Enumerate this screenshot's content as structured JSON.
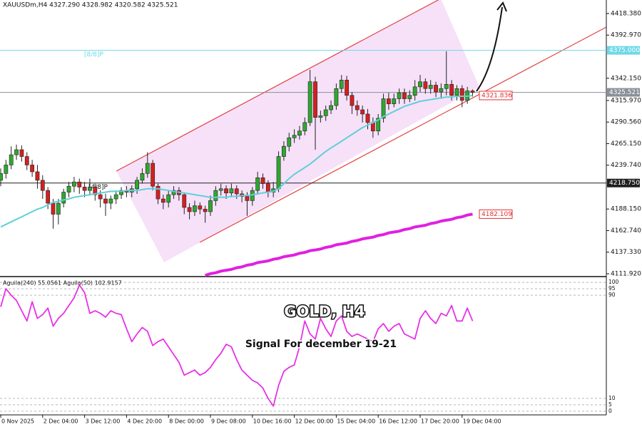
{
  "chart_data": [
    {
      "type": "candlestick",
      "title": "XAUUSDm,H4  4327.290 4328.982 4320.582 4325.521",
      "categories": [
        "0 Nov 2025",
        null,
        null,
        null,
        null,
        null,
        null,
        null,
        "2 Dec 04:00",
        null,
        null,
        null,
        null,
        null,
        null,
        null,
        "3 Dec 12:00",
        null,
        null,
        null,
        null,
        null,
        null,
        null,
        "4 Dec 20:00",
        null,
        null,
        null,
        null,
        null,
        null,
        null,
        "8 Dec 00:00",
        null,
        null,
        null,
        null,
        null,
        null,
        null,
        "9 Dec 08:00",
        null,
        null,
        null,
        null,
        null,
        null,
        null,
        "10 Dec 16:00",
        null,
        null,
        null,
        null,
        null,
        null,
        null,
        "12 Dec 00:00",
        null,
        null,
        null,
        null,
        null,
        null,
        null,
        "15 Dec 04:00",
        null,
        null,
        null,
        null,
        null,
        null,
        null,
        "16 Dec 12:00",
        null,
        null,
        null,
        null,
        null,
        null,
        null,
        "17 Dec 20:00",
        null,
        null,
        null,
        null,
        null,
        null,
        null,
        "19 Dec 04:00",
        null,
        null
      ],
      "open": [
        4222,
        4230,
        4240,
        4252,
        4258,
        4250,
        4240,
        4232,
        4222,
        4210,
        4195,
        4182,
        4195,
        4208,
        4215,
        4220,
        4214,
        4210,
        4214,
        4205,
        4200,
        4195,
        4200,
        4205,
        4210,
        4208,
        4212,
        4222,
        4230,
        4242,
        4215,
        4200,
        4196,
        4205,
        4210,
        4205,
        4190,
        4185,
        4192,
        4188,
        4185,
        4198,
        4210,
        4212,
        4207,
        4212,
        4206,
        4203,
        4198,
        4210,
        4225,
        4218,
        4208,
        4212,
        4250,
        4262,
        4272,
        4275,
        4280,
        4290,
        4338,
        4296,
        4298,
        4305,
        4310,
        4330,
        4340,
        4322,
        4310,
        4305,
        4300,
        4290,
        4280,
        4295,
        4318,
        4312,
        4318,
        4325,
        4318,
        4322,
        4332,
        4338,
        4330,
        4334,
        4326,
        4330,
        4335,
        4322,
        4330,
        4316,
        4327.29
      ],
      "high": [
        4236,
        4246,
        4262,
        4264,
        4263,
        4255,
        4246,
        4240,
        4228,
        4214,
        4200,
        4200,
        4212,
        4220,
        4226,
        4224,
        4220,
        4224,
        4218,
        4210,
        4206,
        4204,
        4210,
        4214,
        4215,
        4216,
        4226,
        4236,
        4255,
        4246,
        4218,
        4205,
        4210,
        4215,
        4214,
        4208,
        4195,
        4198,
        4196,
        4192,
        4204,
        4215,
        4218,
        4216,
        4218,
        4216,
        4210,
        4208,
        4214,
        4232,
        4230,
        4222,
        4220,
        4256,
        4268,
        4278,
        4282,
        4286,
        4296,
        4352,
        4344,
        4304,
        4310,
        4316,
        4336,
        4346,
        4345,
        4326,
        4316,
        4310,
        4306,
        4296,
        4300,
        4324,
        4325,
        4324,
        4330,
        4330,
        4328,
        4340,
        4346,
        4342,
        4340,
        4338,
        4336,
        4374,
        4340,
        4334,
        4334,
        4332,
        4328.982
      ],
      "low": [
        4215,
        4224,
        4235,
        4246,
        4244,
        4234,
        4226,
        4212,
        4200,
        4188,
        4165,
        4170,
        4190,
        4202,
        4208,
        4206,
        4202,
        4204,
        4198,
        4190,
        4180,
        4188,
        4194,
        4200,
        4202,
        4202,
        4206,
        4218,
        4225,
        4210,
        4194,
        4188,
        4190,
        4200,
        4198,
        4182,
        4176,
        4180,
        4182,
        4172,
        4180,
        4192,
        4204,
        4200,
        4202,
        4200,
        4196,
        4180,
        4192,
        4205,
        4212,
        4202,
        4202,
        4208,
        4245,
        4256,
        4266,
        4270,
        4275,
        4286,
        4258,
        4290,
        4292,
        4300,
        4305,
        4325,
        4316,
        4300,
        4298,
        4290,
        4282,
        4272,
        4275,
        4290,
        4305,
        4308,
        4312,
        4312,
        4314,
        4316,
        4326,
        4324,
        4324,
        4320,
        4318,
        4322,
        4316,
        4316,
        4308,
        4312,
        4320.582
      ],
      "close": [
        4230,
        4240,
        4252,
        4258,
        4250,
        4240,
        4232,
        4222,
        4210,
        4195,
        4182,
        4195,
        4208,
        4215,
        4220,
        4214,
        4210,
        4214,
        4205,
        4200,
        4195,
        4200,
        4205,
        4210,
        4208,
        4212,
        4222,
        4230,
        4242,
        4215,
        4200,
        4196,
        4205,
        4210,
        4205,
        4190,
        4185,
        4192,
        4188,
        4185,
        4198,
        4210,
        4212,
        4207,
        4212,
        4206,
        4203,
        4198,
        4210,
        4225,
        4218,
        4208,
        4212,
        4250,
        4262,
        4272,
        4275,
        4280,
        4290,
        4338,
        4296,
        4298,
        4305,
        4310,
        4330,
        4340,
        4322,
        4310,
        4305,
        4300,
        4290,
        4280,
        4295,
        4318,
        4312,
        4318,
        4325,
        4318,
        4322,
        4332,
        4338,
        4330,
        4334,
        4326,
        4330,
        4335,
        4322,
        4330,
        4316,
        4327.29,
        4325.521
      ],
      "up_color": "#2ea82e",
      "down_color": "#d42020",
      "lines": [
        {
          "color": "#5fd0d8",
          "width": 2,
          "values": [
            4167,
            4170,
            4173,
            4176,
            4179,
            4182,
            4185,
            4188,
            4190,
            4193,
            4196,
            4197,
            4199,
            4200,
            4202,
            4203,
            4204,
            4205,
            4206,
            4207,
            4208,
            4209,
            4209,
            4209,
            4210,
            4210,
            4210,
            4211,
            4212,
            4212,
            4212,
            4211,
            4210,
            4209,
            4208,
            4207,
            4206,
            4205,
            4204,
            4203,
            4202,
            4202,
            4202,
            4202,
            4203,
            4203,
            4204,
            4204,
            4205,
            4206,
            4207,
            4208,
            4209,
            4212,
            4218,
            4224,
            4229,
            4233,
            4237,
            4241,
            4246,
            4251,
            4256,
            4260,
            4264,
            4268,
            4272,
            4276,
            4280,
            4284,
            4287,
            4290,
            4293,
            4297,
            4300,
            4303,
            4306,
            4309,
            4311,
            4313,
            4315,
            4316,
            4317,
            4318,
            4319,
            4320,
            4320,
            4321,
            4321,
            4321,
            4321.836
          ]
        },
        {
          "color": "#e020e0",
          "width": 4,
          "values": [
            null,
            null,
            null,
            null,
            null,
            null,
            null,
            null,
            null,
            null,
            null,
            null,
            null,
            null,
            null,
            null,
            null,
            null,
            null,
            null,
            null,
            null,
            null,
            null,
            null,
            null,
            null,
            null,
            null,
            null,
            null,
            null,
            null,
            null,
            null,
            null,
            null,
            null,
            null,
            4110,
            4112,
            4113,
            4115,
            4116,
            4117,
            4119,
            4120,
            4122,
            4123,
            4125,
            4126,
            4127,
            4129,
            4130,
            4132,
            4133,
            4134,
            4136,
            4137,
            4139,
            4140,
            4141,
            4143,
            4144,
            4146,
            4147,
            4148,
            4150,
            4151,
            4153,
            4154,
            4155,
            4157,
            4158,
            4160,
            4161,
            4162,
            4164,
            4165,
            4167,
            4168,
            4169,
            4171,
            4172,
            4174,
            4175,
            4176,
            4178,
            4179,
            4181,
            4182.109
          ]
        }
      ],
      "ylim": [
        4109.4,
        4434.3
      ],
      "yticks": [
        {
          "value": 4418.38,
          "label": "4418.380"
        },
        {
          "value": 4392.97,
          "label": "4392.970"
        },
        {
          "value": 4342.15,
          "label": "4342.150"
        },
        {
          "value": 4315.97,
          "label": "4315.970"
        },
        {
          "value": 4290.56,
          "label": "4290.560"
        },
        {
          "value": 4265.15,
          "label": "4265.150"
        },
        {
          "value": 4239.74,
          "label": "4239.740"
        },
        {
          "value": 4188.15,
          "label": "4188.150"
        },
        {
          "value": 4162.74,
          "label": "4162.740"
        },
        {
          "value": 4137.33,
          "label": "4137.330"
        },
        {
          "value": 4111.92,
          "label": "4111.920"
        }
      ],
      "levels": [
        {
          "value": 4375,
          "label": "4375.000",
          "name": "[8/8]P",
          "color": "#6fd8e8"
        },
        {
          "value": 4325.521,
          "label": "4325.521",
          "color": "#8a8f98"
        },
        {
          "value": 4218.75,
          "label": "4218.750",
          "name": "[4/8]P",
          "color": "#202020"
        }
      ],
      "price_tags": [
        {
          "value": 4321.836,
          "label": "4321.836",
          "color": "#e03030"
        },
        {
          "value": 4182.109,
          "label": "4182.109",
          "color": "#e03030"
        }
      ]
    },
    {
      "type": "line",
      "title": "Aguila(240) 55.0561  Aguila(50) 102.9157",
      "series": [
        {
          "color": "#e830e8",
          "values": [
            81,
            95,
            90,
            86,
            78,
            70,
            85,
            72,
            75,
            80,
            66,
            72,
            76,
            82,
            88,
            98,
            92,
            76,
            78,
            76,
            73,
            78,
            76,
            75,
            64,
            54,
            60,
            65,
            62,
            51,
            54,
            56,
            50,
            44,
            38,
            28,
            30,
            32,
            28,
            30,
            34,
            40,
            45,
            52,
            50,
            40,
            32,
            28,
            24,
            22,
            18,
            10,
            4,
            20,
            31,
            34,
            36,
            50,
            70,
            60,
            56,
            72,
            64,
            58,
            70,
            74,
            62,
            58,
            60,
            58,
            56,
            54,
            64,
            68,
            62,
            66,
            68,
            60,
            58,
            56,
            72,
            78,
            72,
            68,
            76,
            74,
            82,
            70,
            70,
            80,
            70
          ]
        }
      ],
      "ylim": [
        -2.8,
        102.8
      ],
      "yticks": [
        100,
        95,
        90,
        10,
        5,
        0
      ],
      "annotations": [
        "GOLD, H4",
        "Signal For december 19-21"
      ]
    }
  ]
}
